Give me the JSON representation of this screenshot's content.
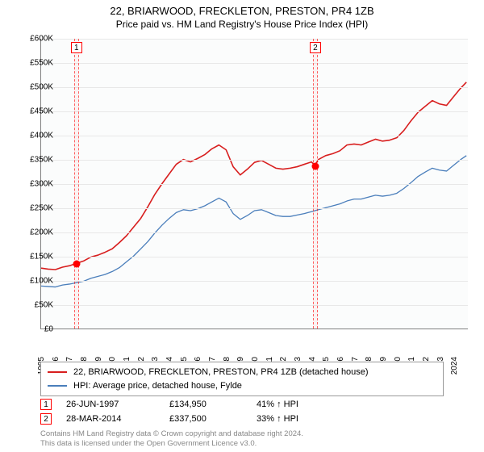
{
  "title_line1": "22, BRIARWOOD, FRECKLETON, PRESTON, PR4 1ZB",
  "title_line2": "Price paid vs. HM Land Registry's House Price Index (HPI)",
  "chart": {
    "type": "line",
    "background_color": "#fbfcfc",
    "grid_color": "#e8e8e8",
    "axis_color": "#808080",
    "x_start_year": 1995,
    "x_end_year": 2025,
    "x_ticks": [
      1995,
      1996,
      1997,
      1998,
      1999,
      2000,
      2001,
      2002,
      2003,
      2004,
      2005,
      2006,
      2007,
      2008,
      2009,
      2010,
      2011,
      2012,
      2013,
      2014,
      2015,
      2016,
      2017,
      2018,
      2019,
      2020,
      2021,
      2022,
      2023,
      2024
    ],
    "y_min": 0,
    "y_max": 600000,
    "y_step": 50000,
    "y_prefix": "£",
    "y_suffix": "K",
    "y_ticks": [
      0,
      50000,
      100000,
      150000,
      200000,
      250000,
      300000,
      350000,
      400000,
      450000,
      500000,
      550000,
      600000
    ],
    "series": [
      {
        "id": "property",
        "label": "22, BRIARWOOD, FRECKLETON, PRESTON, PR4 1ZB (detached house)",
        "color": "#d81e1e",
        "line_width": 1.6,
        "points": [
          [
            1995.0,
            125
          ],
          [
            1995.5,
            123
          ],
          [
            1996.0,
            122
          ],
          [
            1996.5,
            127
          ],
          [
            1997.0,
            130
          ],
          [
            1997.48,
            135
          ],
          [
            1998.0,
            140
          ],
          [
            1998.5,
            148
          ],
          [
            1999.0,
            152
          ],
          [
            1999.5,
            158
          ],
          [
            2000.0,
            165
          ],
          [
            2000.5,
            178
          ],
          [
            2001.0,
            192
          ],
          [
            2001.5,
            210
          ],
          [
            2002.0,
            228
          ],
          [
            2002.5,
            252
          ],
          [
            2003.0,
            278
          ],
          [
            2003.5,
            300
          ],
          [
            2004.0,
            320
          ],
          [
            2004.5,
            340
          ],
          [
            2005.0,
            350
          ],
          [
            2005.5,
            345
          ],
          [
            2006.0,
            352
          ],
          [
            2006.5,
            360
          ],
          [
            2007.0,
            372
          ],
          [
            2007.5,
            380
          ],
          [
            2008.0,
            370
          ],
          [
            2008.5,
            335
          ],
          [
            2009.0,
            318
          ],
          [
            2009.5,
            330
          ],
          [
            2010.0,
            344
          ],
          [
            2010.5,
            348
          ],
          [
            2011.0,
            340
          ],
          [
            2011.5,
            332
          ],
          [
            2012.0,
            330
          ],
          [
            2012.5,
            332
          ],
          [
            2013.0,
            335
          ],
          [
            2013.5,
            340
          ],
          [
            2014.0,
            345
          ],
          [
            2014.24,
            338
          ],
          [
            2014.5,
            350
          ],
          [
            2015.0,
            358
          ],
          [
            2015.5,
            362
          ],
          [
            2016.0,
            368
          ],
          [
            2016.5,
            380
          ],
          [
            2017.0,
            382
          ],
          [
            2017.5,
            380
          ],
          [
            2018.0,
            386
          ],
          [
            2018.5,
            392
          ],
          [
            2019.0,
            388
          ],
          [
            2019.5,
            390
          ],
          [
            2020.0,
            395
          ],
          [
            2020.5,
            410
          ],
          [
            2021.0,
            430
          ],
          [
            2021.5,
            448
          ],
          [
            2022.0,
            460
          ],
          [
            2022.5,
            472
          ],
          [
            2023.0,
            465
          ],
          [
            2023.5,
            462
          ],
          [
            2024.0,
            480
          ],
          [
            2024.5,
            498
          ],
          [
            2024.9,
            510
          ]
        ]
      },
      {
        "id": "hpi",
        "label": "HPI: Average price, detached house, Fylde",
        "color": "#4a7ebb",
        "line_width": 1.3,
        "points": [
          [
            1995.0,
            88
          ],
          [
            1995.5,
            87
          ],
          [
            1996.0,
            86
          ],
          [
            1996.5,
            90
          ],
          [
            1997.0,
            92
          ],
          [
            1997.5,
            95
          ],
          [
            1998.0,
            98
          ],
          [
            1998.5,
            104
          ],
          [
            1999.0,
            108
          ],
          [
            1999.5,
            112
          ],
          [
            2000.0,
            118
          ],
          [
            2000.5,
            126
          ],
          [
            2001.0,
            138
          ],
          [
            2001.5,
            150
          ],
          [
            2002.0,
            165
          ],
          [
            2002.5,
            180
          ],
          [
            2003.0,
            198
          ],
          [
            2003.5,
            214
          ],
          [
            2004.0,
            228
          ],
          [
            2004.5,
            240
          ],
          [
            2005.0,
            246
          ],
          [
            2005.5,
            244
          ],
          [
            2006.0,
            248
          ],
          [
            2006.5,
            254
          ],
          [
            2007.0,
            262
          ],
          [
            2007.5,
            270
          ],
          [
            2008.0,
            262
          ],
          [
            2008.5,
            238
          ],
          [
            2009.0,
            226
          ],
          [
            2009.5,
            234
          ],
          [
            2010.0,
            244
          ],
          [
            2010.5,
            246
          ],
          [
            2011.0,
            240
          ],
          [
            2011.5,
            234
          ],
          [
            2012.0,
            232
          ],
          [
            2012.5,
            232
          ],
          [
            2013.0,
            235
          ],
          [
            2013.5,
            238
          ],
          [
            2014.0,
            242
          ],
          [
            2014.5,
            246
          ],
          [
            2015.0,
            250
          ],
          [
            2015.5,
            254
          ],
          [
            2016.0,
            258
          ],
          [
            2016.5,
            264
          ],
          [
            2017.0,
            268
          ],
          [
            2017.5,
            268
          ],
          [
            2018.0,
            272
          ],
          [
            2018.5,
            276
          ],
          [
            2019.0,
            274
          ],
          [
            2019.5,
            276
          ],
          [
            2020.0,
            280
          ],
          [
            2020.5,
            290
          ],
          [
            2021.0,
            302
          ],
          [
            2021.5,
            315
          ],
          [
            2022.0,
            324
          ],
          [
            2022.5,
            332
          ],
          [
            2023.0,
            328
          ],
          [
            2023.5,
            326
          ],
          [
            2024.0,
            338
          ],
          [
            2024.5,
            350
          ],
          [
            2024.9,
            358
          ]
        ]
      }
    ],
    "sale_markers": [
      {
        "n": "1",
        "year": 1997.48,
        "price": 134950
      },
      {
        "n": "2",
        "year": 2014.24,
        "price": 337500
      }
    ]
  },
  "legend": {
    "border_color": "#999999",
    "items": [
      {
        "color": "#d81e1e",
        "label": "22, BRIARWOOD, FRECKLETON, PRESTON, PR4 1ZB (detached house)"
      },
      {
        "color": "#4a7ebb",
        "label": "HPI: Average price, detached house, Fylde"
      }
    ]
  },
  "sales": [
    {
      "n": "1",
      "date": "26-JUN-1997",
      "price": "£134,950",
      "pct": "41% ↑ HPI"
    },
    {
      "n": "2",
      "date": "28-MAR-2014",
      "price": "£337,500",
      "pct": "33% ↑ HPI"
    }
  ],
  "attribution_line1": "Contains HM Land Registry data © Crown copyright and database right 2024.",
  "attribution_line2": "This data is licensed under the Open Government Licence v3.0."
}
